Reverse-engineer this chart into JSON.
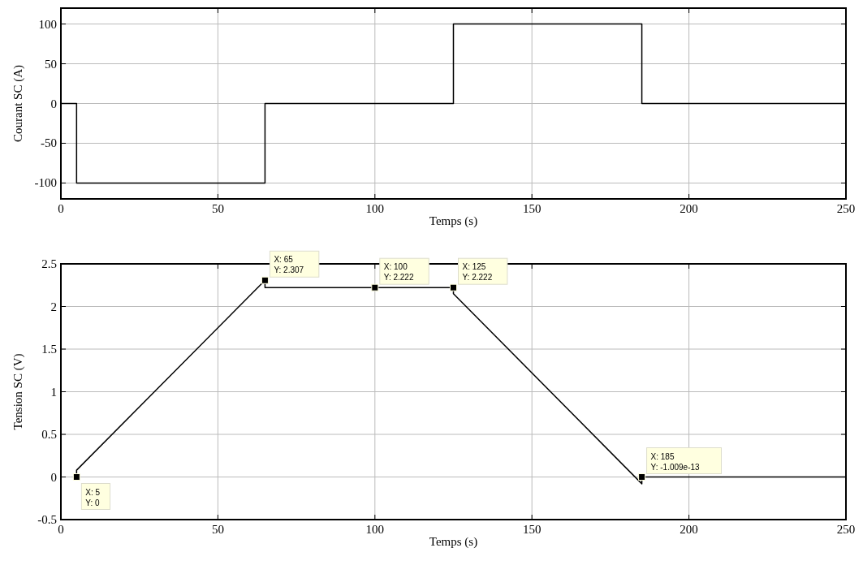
{
  "chart_data": [
    {
      "type": "line",
      "ylabel": "Courant SC (A)",
      "xlabel": "Temps (s)",
      "x": [
        0,
        5,
        5,
        65,
        65,
        125,
        125,
        185,
        185,
        250
      ],
      "series": [
        {
          "color": "#000000",
          "values": [
            0,
            0,
            -100,
            -100,
            0,
            0,
            100,
            100,
            0,
            0
          ]
        }
      ],
      "xlim": [
        0,
        250
      ],
      "xticks": [
        0,
        50,
        100,
        150,
        200,
        250
      ],
      "ylim": [
        -120,
        120
      ],
      "yticks": [
        -100,
        -50,
        0,
        50,
        100
      ],
      "grid": true
    },
    {
      "type": "line",
      "ylabel": "Tension SC (V)",
      "xlabel": "Temps (s)",
      "x": [
        5,
        5,
        65,
        65,
        100,
        125,
        125,
        185,
        185,
        250
      ],
      "series": [
        {
          "color": "#000000",
          "values": [
            0,
            0.08,
            2.307,
            2.222,
            2.222,
            2.222,
            2.15,
            -0.08,
            0,
            0
          ]
        }
      ],
      "xlim": [
        0,
        250
      ],
      "xticks": [
        0,
        50,
        100,
        150,
        200,
        250
      ],
      "ylim": [
        -0.5,
        2.5
      ],
      "yticks": [
        -0.5,
        0,
        0.5,
        1,
        1.5,
        2,
        2.5
      ],
      "grid": true,
      "annotations": [
        {
          "text": "X: 5\nY: 0",
          "x": 5,
          "y": 0
        },
        {
          "text": "X: 65\nY: 2.307",
          "x": 65,
          "y": 2.307
        },
        {
          "text": "X: 100\nY: 2.222",
          "x": 100,
          "y": 2.222
        },
        {
          "text": "X: 125\nY: 2.222",
          "x": 125,
          "y": 2.222
        },
        {
          "text": "X: 185\nY: -1.009e-13",
          "x": 185,
          "y": -1.009e-13
        }
      ]
    }
  ]
}
